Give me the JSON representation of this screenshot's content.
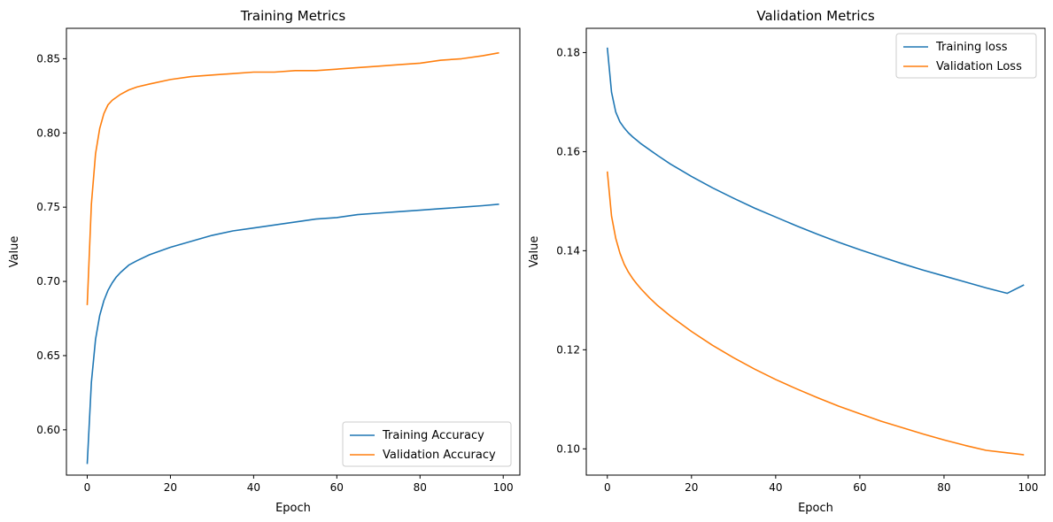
{
  "chart_data": [
    {
      "type": "line",
      "title": "Training Metrics",
      "xlabel": "Epoch",
      "ylabel": "Value",
      "xlim": [
        -5,
        104
      ],
      "ylim": [
        0.5695,
        0.8705
      ],
      "xticks": [
        0,
        20,
        40,
        60,
        80,
        100
      ],
      "xtick_labels": [
        "0",
        "20",
        "40",
        "60",
        "80",
        "100"
      ],
      "yticks": [
        0.6,
        0.65,
        0.7,
        0.75,
        0.8,
        0.85
      ],
      "ytick_labels": [
        "0.60",
        "0.65",
        "0.70",
        "0.75",
        "0.80",
        "0.85"
      ],
      "grid": false,
      "legend_position": "lower-right",
      "series": [
        {
          "name": "Training Accuracy",
          "color": "#1f77b4",
          "points": [
            [
              0,
              0.577
            ],
            [
              1,
              0.632
            ],
            [
              2,
              0.661
            ],
            [
              3,
              0.677
            ],
            [
              4,
              0.687
            ],
            [
              5,
              0.694
            ],
            [
              6,
              0.699
            ],
            [
              7,
              0.703
            ],
            [
              8,
              0.706
            ],
            [
              10,
              0.711
            ],
            [
              12,
              0.714
            ],
            [
              15,
              0.718
            ],
            [
              20,
              0.723
            ],
            [
              25,
              0.727
            ],
            [
              30,
              0.731
            ],
            [
              35,
              0.734
            ],
            [
              40,
              0.736
            ],
            [
              45,
              0.738
            ],
            [
              50,
              0.74
            ],
            [
              55,
              0.742
            ],
            [
              60,
              0.743
            ],
            [
              65,
              0.745
            ],
            [
              70,
              0.746
            ],
            [
              75,
              0.747
            ],
            [
              80,
              0.748
            ],
            [
              85,
              0.749
            ],
            [
              90,
              0.75
            ],
            [
              95,
              0.751
            ],
            [
              99,
              0.752
            ]
          ]
        },
        {
          "name": "Validation Accuracy",
          "color": "#ff7f0e",
          "points": [
            [
              0,
              0.684
            ],
            [
              1,
              0.752
            ],
            [
              2,
              0.786
            ],
            [
              3,
              0.803
            ],
            [
              4,
              0.813
            ],
            [
              5,
              0.819
            ],
            [
              6,
              0.822
            ],
            [
              7,
              0.824
            ],
            [
              8,
              0.826
            ],
            [
              10,
              0.829
            ],
            [
              12,
              0.831
            ],
            [
              15,
              0.833
            ],
            [
              20,
              0.836
            ],
            [
              25,
              0.838
            ],
            [
              30,
              0.839
            ],
            [
              35,
              0.84
            ],
            [
              40,
              0.841
            ],
            [
              45,
              0.841
            ],
            [
              50,
              0.842
            ],
            [
              55,
              0.842
            ],
            [
              60,
              0.843
            ],
            [
              65,
              0.844
            ],
            [
              70,
              0.845
            ],
            [
              75,
              0.846
            ],
            [
              80,
              0.847
            ],
            [
              85,
              0.849
            ],
            [
              90,
              0.85
            ],
            [
              95,
              0.852
            ],
            [
              99,
              0.854
            ]
          ]
        }
      ]
    },
    {
      "type": "line",
      "title": "Validation Metrics",
      "xlabel": "Epoch",
      "ylabel": "Value",
      "xlim": [
        -5,
        104
      ],
      "ylim": [
        0.0947,
        0.1849
      ],
      "xticks": [
        0,
        20,
        40,
        60,
        80,
        100
      ],
      "xtick_labels": [
        "0",
        "20",
        "40",
        "60",
        "80",
        "100"
      ],
      "yticks": [
        0.1,
        0.12,
        0.14,
        0.16,
        0.18
      ],
      "ytick_labels": [
        "0.10",
        "0.12",
        "0.14",
        "0.16",
        "0.18"
      ],
      "grid": false,
      "legend_position": "upper-right",
      "series": [
        {
          "name": "Training loss",
          "color": "#1f77b4",
          "points": [
            [
              0,
              0.181
            ],
            [
              1,
              0.172
            ],
            [
              2,
              0.168
            ],
            [
              3,
              0.166
            ],
            [
              4,
              0.1648
            ],
            [
              5,
              0.1638
            ],
            [
              6,
              0.163
            ],
            [
              7,
              0.1623
            ],
            [
              8,
              0.1616
            ],
            [
              10,
              0.1604
            ],
            [
              12,
              0.1592
            ],
            [
              15,
              0.1575
            ],
            [
              20,
              0.155
            ],
            [
              25,
              0.1527
            ],
            [
              30,
              0.1506
            ],
            [
              35,
              0.1486
            ],
            [
              40,
              0.1468
            ],
            [
              45,
              0.145
            ],
            [
              50,
              0.1433
            ],
            [
              55,
              0.1417
            ],
            [
              60,
              0.1402
            ],
            [
              65,
              0.1388
            ],
            [
              70,
              0.1374
            ],
            [
              75,
              0.1361
            ],
            [
              80,
              0.1349
            ],
            [
              85,
              0.1337
            ],
            [
              90,
              0.1325
            ],
            [
              95,
              0.1314
            ],
            [
              99,
              0.1331
            ]
          ]
        },
        {
          "name": "Validation Loss",
          "color": "#ff7f0e",
          "points": [
            [
              0,
              0.156
            ],
            [
              1,
              0.147
            ],
            [
              2,
              0.1425
            ],
            [
              3,
              0.1395
            ],
            [
              4,
              0.1373
            ],
            [
              5,
              0.1357
            ],
            [
              6,
              0.1344
            ],
            [
              7,
              0.1333
            ],
            [
              8,
              0.1323
            ],
            [
              10,
              0.1305
            ],
            [
              12,
              0.1289
            ],
            [
              15,
              0.1268
            ],
            [
              20,
              0.1237
            ],
            [
              25,
              0.1209
            ],
            [
              30,
              0.1184
            ],
            [
              35,
              0.1161
            ],
            [
              40,
              0.114
            ],
            [
              45,
              0.1121
            ],
            [
              50,
              0.1103
            ],
            [
              55,
              0.1086
            ],
            [
              60,
              0.1071
            ],
            [
              65,
              0.1056
            ],
            [
              70,
              0.1043
            ],
            [
              75,
              0.103
            ],
            [
              80,
              0.1018
            ],
            [
              85,
              0.1007
            ],
            [
              90,
              0.0997
            ],
            [
              95,
              0.0992
            ],
            [
              99,
              0.0988
            ]
          ]
        }
      ]
    }
  ]
}
